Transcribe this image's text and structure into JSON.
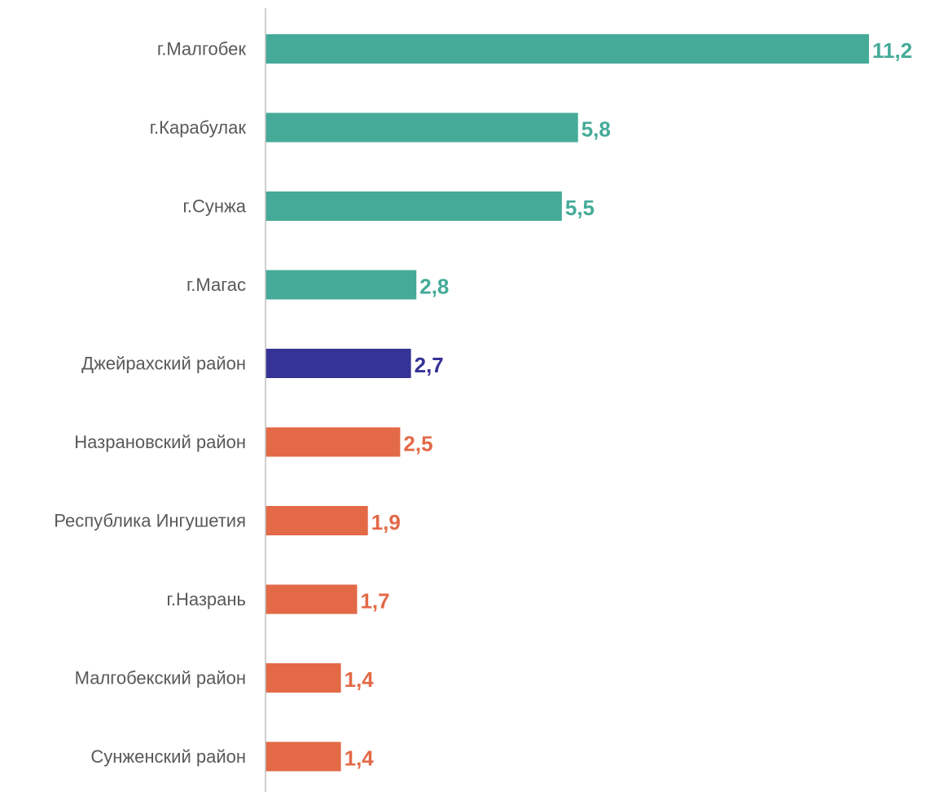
{
  "chart_data": {
    "type": "bar",
    "orientation": "horizontal",
    "categories": [
      "г.Малгобек",
      "г.Карабулак",
      "г.Сунжа",
      "г.Магас",
      "Джейрахский район",
      "Назрановский район",
      "Республика Ингушетия",
      "г.Назрань",
      "Малгобекский район",
      "Сунженский район"
    ],
    "values": [
      11.2,
      5.8,
      5.5,
      2.8,
      2.7,
      2.5,
      1.9,
      1.7,
      1.4,
      1.4
    ],
    "value_labels": [
      "11,2",
      "5,8",
      "5,5",
      "2,8",
      "2,7",
      "2,5",
      "1,9",
      "1,7",
      "1,4",
      "1,4"
    ],
    "colors": [
      "#45AB98",
      "#45AB98",
      "#45AB98",
      "#45AB98",
      "#363396",
      "#E36947",
      "#E36947",
      "#E36947",
      "#E36947",
      "#E36947"
    ],
    "xlim": [
      0,
      11.2
    ],
    "grid": false,
    "legend": "none",
    "title": "",
    "xlabel": "",
    "ylabel": ""
  }
}
